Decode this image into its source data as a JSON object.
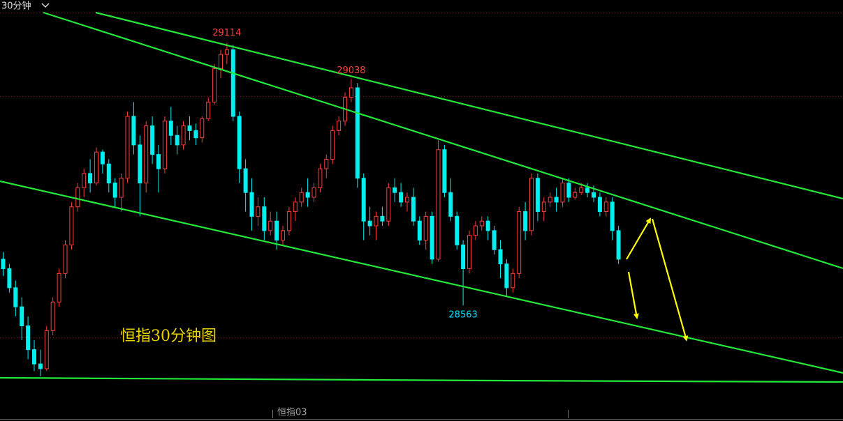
{
  "chart_data": {
    "type": "candlestick",
    "title": "恒指30分钟图",
    "period": "30分钟",
    "contract": "恒指03",
    "up_color": "#ff3c3c",
    "down_color": "#00f0f0",
    "ylim": [
      28326,
      29178
    ],
    "open": [
      28660,
      28640,
      28600,
      28560,
      28520,
      28470,
      28440,
      28430,
      28510,
      28570,
      28630,
      28690,
      28770,
      28810,
      28840,
      28820,
      28885,
      28860,
      28820,
      28790,
      28830,
      28960,
      28900,
      28820,
      28940,
      28880,
      28850,
      28950,
      28920,
      28900,
      28940,
      28930,
      28915,
      28955,
      28990,
      29060,
      29090,
      29100,
      28960,
      28850,
      28800,
      28750,
      28770,
      28720,
      28740,
      28700,
      28720,
      28760,
      28780,
      28800,
      28790,
      28810,
      28850,
      28870,
      28930,
      28950,
      29000,
      29020,
      28830,
      28740,
      28730,
      28750,
      28740,
      28810,
      28800,
      28780,
      28790,
      28740,
      28700,
      28750,
      28660,
      28890,
      28800,
      28750,
      28690,
      28640,
      28710,
      28730,
      28740,
      28720,
      28680,
      28650,
      28600,
      28630,
      28760,
      28720,
      28830,
      28760,
      28780,
      28790,
      28780,
      28820,
      28790,
      28800,
      28810,
      28800,
      28790,
      28760,
      28780,
      28720
    ],
    "high": [
      28675,
      28650,
      28615,
      28580,
      28540,
      28490,
      28470,
      28520,
      28580,
      28640,
      28700,
      28780,
      28820,
      28850,
      28870,
      28895,
      28890,
      28870,
      28830,
      28840,
      28970,
      28990,
      28920,
      28950,
      28960,
      28900,
      28960,
      28980,
      28940,
      28950,
      28960,
      28945,
      28960,
      29000,
      29070,
      29100,
      29114,
      29110,
      28970,
      28870,
      28830,
      28790,
      28790,
      28760,
      28760,
      28730,
      28770,
      28790,
      28810,
      28830,
      28820,
      28860,
      28880,
      28940,
      28960,
      29010,
      29038,
      29030,
      28840,
      28770,
      28760,
      28770,
      28820,
      28830,
      28820,
      28800,
      28810,
      28750,
      28760,
      28760,
      28910,
      28900,
      28830,
      28760,
      28700,
      28720,
      28740,
      28750,
      28750,
      28730,
      28700,
      28660,
      28640,
      28770,
      28780,
      28840,
      28840,
      28790,
      28800,
      28810,
      28830,
      28830,
      28810,
      28820,
      28820,
      28815,
      28800,
      28790,
      28790,
      28730
    ],
    "low": [
      28625,
      28590,
      28540,
      28490,
      28450,
      28425,
      28414,
      28425,
      28500,
      28560,
      28620,
      28680,
      28760,
      28790,
      28800,
      28815,
      28840,
      28800,
      28770,
      28760,
      28820,
      28880,
      28750,
      28800,
      28860,
      28800,
      28840,
      28900,
      28880,
      28890,
      28910,
      28900,
      28905,
      28950,
      28985,
      29040,
      29070,
      28950,
      28820,
      28760,
      28720,
      28730,
      28700,
      28710,
      28680,
      28690,
      28710,
      28740,
      28770,
      28770,
      28780,
      28800,
      28830,
      28860,
      28920,
      28940,
      28990,
      28810,
      28700,
      28710,
      28700,
      28730,
      28730,
      28780,
      28770,
      28760,
      28730,
      28690,
      28680,
      28650,
      28655,
      28790,
      28740,
      28680,
      28563,
      28630,
      28700,
      28720,
      28700,
      28670,
      28620,
      28580,
      28590,
      28620,
      28700,
      28710,
      28740,
      28740,
      28770,
      28760,
      28770,
      28780,
      28785,
      28795,
      28790,
      28780,
      28750,
      28750,
      28700,
      28650
    ],
    "close": [
      28640,
      28600,
      28560,
      28520,
      28470,
      28440,
      28430,
      28510,
      28570,
      28630,
      28690,
      28770,
      28810,
      28840,
      28820,
      28885,
      28860,
      28820,
      28790,
      28830,
      28960,
      28900,
      28820,
      28940,
      28880,
      28850,
      28950,
      28920,
      28900,
      28940,
      28930,
      28915,
      28955,
      28990,
      29060,
      29090,
      29100,
      28960,
      28850,
      28800,
      28750,
      28770,
      28720,
      28740,
      28700,
      28720,
      28760,
      28780,
      28800,
      28790,
      28810,
      28850,
      28870,
      28930,
      28950,
      29000,
      29020,
      28830,
      28740,
      28730,
      28750,
      28740,
      28810,
      28800,
      28780,
      28790,
      28740,
      28700,
      28750,
      28660,
      28890,
      28800,
      28750,
      28690,
      28640,
      28710,
      28730,
      28740,
      28720,
      28680,
      28650,
      28600,
      28630,
      28760,
      28720,
      28830,
      28760,
      28780,
      28790,
      28780,
      28820,
      28790,
      28800,
      28810,
      28800,
      28790,
      28760,
      28780,
      28720,
      28660
    ]
  }
}
